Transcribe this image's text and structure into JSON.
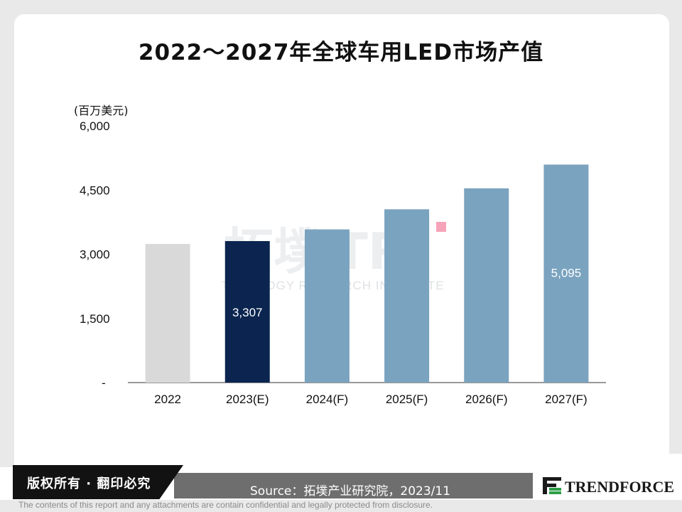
{
  "chart_data": {
    "type": "bar",
    "title": "2022～2027年全球车用LED市场产值",
    "unit": "(百万美元)",
    "categories": [
      "2022",
      "2023(E)",
      "2024(F)",
      "2025(F)",
      "2026(F)",
      "2027(F)"
    ],
    "values": [
      3240,
      3307,
      3580,
      4050,
      4540,
      5095
    ],
    "data_labels": [
      "",
      "3,307",
      "",
      "",
      "",
      "5,095"
    ],
    "ylim": [
      0,
      6000
    ],
    "y_ticks": [
      {
        "value": 0,
        "label": "-"
      },
      {
        "value": 1500,
        "label": "1,500"
      },
      {
        "value": 3000,
        "label": "3,000"
      },
      {
        "value": 4500,
        "label": "4,500"
      },
      {
        "value": 6000,
        "label": "6,000"
      }
    ],
    "bar_colors": [
      "#d9d9d9",
      "#0b2550",
      "#7aa3bf",
      "#7aa3bf",
      "#7aa3bf",
      "#7aa3bf"
    ],
    "grid": false
  },
  "watermark": {
    "cn": "拓墣",
    "tri": "TRi",
    "en": "TOPOLOGY RESEARCH INSTITUTE",
    "accent_color": "#f5a3b8"
  },
  "footer": {
    "rights": "版权所有 · 翻印必究",
    "source": "Source：拓墣产业研究院，2023/11",
    "brand": "TRENDFORCE",
    "brand_color": "#1a1a1a",
    "disclaimer": "The contents of this report and any attachments are contain confidential and legally protected from disclosure."
  }
}
